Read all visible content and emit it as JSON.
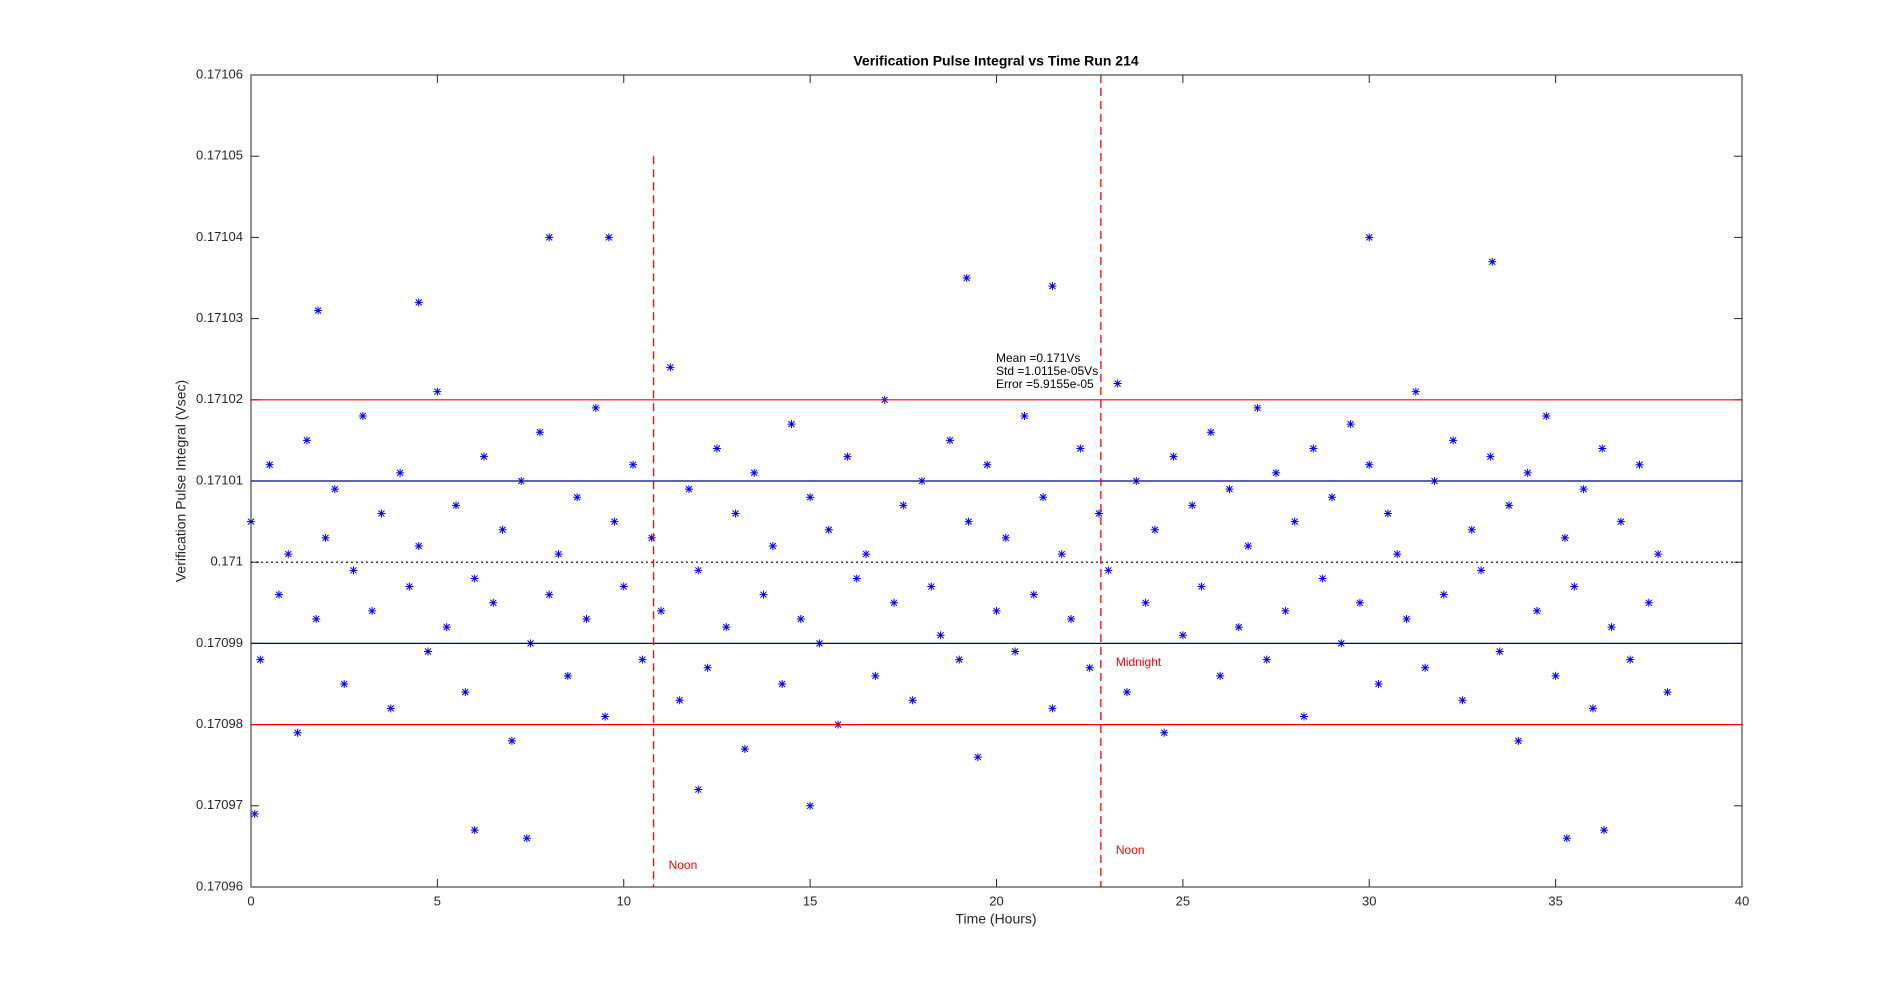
{
  "chart_data": {
    "type": "scatter",
    "title": "Verification Pulse Integral vs Time Run 214",
    "x_label": "Time (Hours)",
    "y_label": "Verification Pulse Integral (Vsec)",
    "xlim": [
      0,
      40
    ],
    "xticks": [
      0,
      5,
      10,
      15,
      20,
      25,
      30,
      35,
      40
    ],
    "ylim": [
      0.17096,
      0.17106
    ],
    "yticks": [
      0.17096,
      0.17097,
      0.17098,
      0.17099,
      0.171,
      0.17101,
      0.17102,
      0.17103,
      0.17104,
      0.17105,
      0.17106
    ],
    "series": [
      {
        "color": "#0000ff",
        "marker": "*",
        "x": [
          0,
          0.25,
          0.5,
          0.75,
          1,
          1.25,
          1.5,
          1.75,
          2,
          2.25,
          2.5,
          2.75,
          3,
          3.25,
          3.5,
          3.75,
          4,
          4.25,
          4.5,
          4.75,
          5,
          5.25,
          5.5,
          5.75,
          6,
          6.25,
          6.5,
          6.75,
          7,
          7.25,
          7.5,
          7.75,
          8,
          8.25,
          8.5,
          8.75,
          9,
          9.25,
          9.5,
          9.75,
          10,
          10.25,
          10.5,
          10.75,
          11,
          11.25,
          11.5,
          11.75,
          12,
          12.25,
          12.5,
          12.75,
          13,
          13.25,
          13.5,
          13.75,
          14,
          14.25,
          14.5,
          14.75,
          15,
          15.25,
          15.5,
          15.75,
          16,
          16.25,
          16.5,
          16.75,
          17,
          17.25,
          17.5,
          17.75,
          18,
          18.25,
          18.5,
          18.75,
          19,
          19.25,
          19.5,
          19.75,
          20,
          20.25,
          20.5,
          20.75,
          21,
          21.25,
          21.5,
          21.75,
          22,
          22.25,
          22.5,
          22.75,
          23,
          23.25,
          23.5,
          23.75,
          24,
          24.25,
          24.5,
          24.75,
          25,
          25.25,
          25.5,
          25.75,
          26,
          26.25,
          26.5,
          26.75,
          27,
          27.25,
          27.5,
          27.75,
          28,
          28.25,
          28.5,
          28.75,
          29,
          29.25,
          29.5,
          29.75,
          30,
          30.25,
          30.5,
          30.75,
          31,
          31.25,
          31.5,
          31.75,
          32,
          32.25,
          32.5,
          32.75,
          33,
          33.25,
          33.5,
          33.75,
          34,
          34.25,
          34.5,
          34.75,
          35,
          35.25,
          35.5,
          35.75,
          36,
          36.25,
          36.5,
          36.75,
          37,
          37.25,
          37.5,
          37.75,
          38,
          0.1,
          6,
          7.4,
          8,
          9.6,
          19.2,
          30,
          33.3,
          35.3,
          36.3,
          4.5,
          1.8,
          21.5,
          12,
          15
        ],
        "values": [
          0.171005,
          0.170988,
          0.171012,
          0.170996,
          0.171001,
          0.170979,
          0.171015,
          0.170993,
          0.171003,
          0.171009,
          0.170985,
          0.170999,
          0.171018,
          0.170994,
          0.171006,
          0.170982,
          0.171011,
          0.170997,
          0.171002,
          0.170989,
          0.171021,
          0.170992,
          0.171007,
          0.170984,
          0.170998,
          0.171013,
          0.170995,
          0.171004,
          0.170978,
          0.17101,
          0.17099,
          0.171016,
          0.170996,
          0.171001,
          0.170986,
          0.171008,
          0.170993,
          0.171019,
          0.170981,
          0.171005,
          0.170997,
          0.171012,
          0.170988,
          0.171003,
          0.170994,
          0.171024,
          0.170983,
          0.171009,
          0.170999,
          0.170987,
          0.171014,
          0.170992,
          0.171006,
          0.170977,
          0.171011,
          0.170996,
          0.171002,
          0.170985,
          0.171017,
          0.170993,
          0.171008,
          0.17099,
          0.171004,
          0.17098,
          0.171013,
          0.170998,
          0.171001,
          0.170986,
          0.17102,
          0.170995,
          0.171007,
          0.170983,
          0.17101,
          0.170997,
          0.170991,
          0.171015,
          0.170988,
          0.171005,
          0.170976,
          0.171012,
          0.170994,
          0.171003,
          0.170989,
          0.171018,
          0.170996,
          0.171008,
          0.170982,
          0.171001,
          0.170993,
          0.171014,
          0.170987,
          0.171006,
          0.170999,
          0.171022,
          0.170984,
          0.17101,
          0.170995,
          0.171004,
          0.170979,
          0.171013,
          0.170991,
          0.171007,
          0.170997,
          0.171016,
          0.170986,
          0.171009,
          0.170992,
          0.171002,
          0.171019,
          0.170988,
          0.171011,
          0.170994,
          0.171005,
          0.170981,
          0.171014,
          0.170998,
          0.171008,
          0.17099,
          0.171017,
          0.170995,
          0.171012,
          0.170985,
          0.171006,
          0.171001,
          0.170993,
          0.171021,
          0.170987,
          0.17101,
          0.170996,
          0.171015,
          0.170983,
          0.171004,
          0.170999,
          0.171013,
          0.170989,
          0.171007,
          0.170978,
          0.171011,
          0.170994,
          0.171018,
          0.170986,
          0.171003,
          0.170997,
          0.171009,
          0.170982,
          0.171014,
          0.170992,
          0.171005,
          0.170988,
          0.171012,
          0.170995,
          0.171001,
          0.170984,
          0.170969,
          0.170967,
          0.170966,
          0.17104,
          0.17104,
          0.171035,
          0.17104,
          0.171037,
          0.170966,
          0.170967,
          0.171032,
          0.171031,
          0.171034,
          0.170972,
          0.17097
        ]
      }
    ],
    "hlines": [
      {
        "value": 0.17102,
        "color": "#ff0000",
        "style": "solid"
      },
      {
        "value": 0.17101,
        "color": "#0000a0",
        "style": "solid"
      },
      {
        "value": 0.171,
        "color": "#000000",
        "style": "dotted"
      },
      {
        "value": 0.17099,
        "color": "#0000a0",
        "style": "solid"
      },
      {
        "value": 0.17098,
        "color": "#ff0000",
        "style": "solid"
      }
    ],
    "vlines": [
      {
        "x": 10.8,
        "top": 0.17105,
        "color": "#ff0000",
        "labels": [
          "Noon"
        ]
      },
      {
        "x": 22.8,
        "top": 0.17106,
        "color": "#ff0000",
        "labels": [
          "Midnight",
          "Noon"
        ]
      }
    ],
    "stats": [
      "Mean =0.171Vs",
      "Std =1.0115e-05Vs",
      "Error =5.9155e-05"
    ]
  }
}
